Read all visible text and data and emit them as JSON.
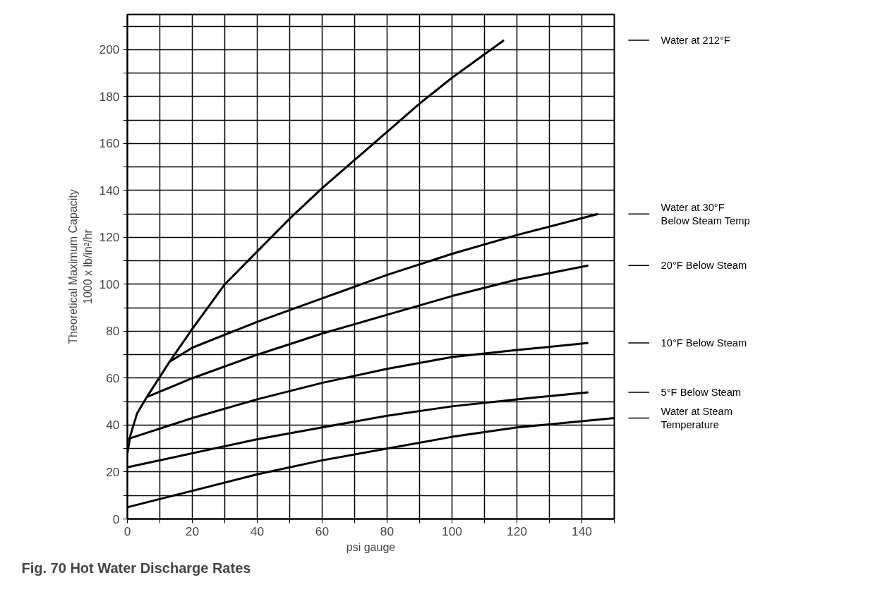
{
  "chart_data": {
    "type": "line",
    "title": "Fig. 70 Hot Water Discharge Rates",
    "xlabel": "psi gauge",
    "ylabel": "Theoretical Maximum Capacity\n1000 x lb/in²/hr",
    "xlim": [
      0,
      150
    ],
    "ylim": [
      0,
      215
    ],
    "xticks": [
      0,
      {
        "value": 10,
        "label": null
      },
      20,
      {
        "value": 30,
        "label": null
      },
      40,
      {
        "value": 50,
        "label": null
      },
      60,
      {
        "value": 70,
        "label": null
      },
      80,
      {
        "value": 90,
        "label": null
      },
      100,
      {
        "value": 110,
        "label": null
      },
      120,
      {
        "value": 130,
        "label": null
      },
      140,
      {
        "value": 150,
        "label": null
      }
    ],
    "yticks": [
      0,
      {
        "value": 10,
        "label": null
      },
      20,
      {
        "value": 30,
        "label": null
      },
      40,
      {
        "value": 50,
        "label": null
      },
      60,
      {
        "value": 70,
        "label": null
      },
      80,
      {
        "value": 90,
        "label": null
      },
      100,
      {
        "value": 110,
        "label": null
      },
      120,
      {
        "value": 130,
        "label": null
      },
      140,
      {
        "value": 150,
        "label": null
      },
      160,
      {
        "value": 170,
        "label": null
      },
      180,
      {
        "value": 190,
        "label": null
      },
      200,
      {
        "value": 210,
        "label": null
      }
    ],
    "grid": true,
    "legend": "right",
    "marker": "none",
    "line_style": "solid",
    "series": [
      {
        "name": "Water at 212°F",
        "color": "#000000",
        "x": [
          0,
          1,
          3,
          6,
          13,
          20,
          30,
          40,
          50,
          60,
          70,
          80,
          90,
          100,
          116
        ],
        "values": [
          28,
          36,
          45,
          52,
          67,
          81,
          100,
          114,
          128,
          141,
          153,
          165,
          177,
          188,
          204
        ]
      },
      {
        "name": "Water at 30°F\nBelow Steam Temp",
        "color": "#000000",
        "x": [
          13,
          20,
          40,
          60,
          80,
          100,
          120,
          145
        ],
        "values": [
          67,
          73,
          84,
          94,
          104,
          113,
          121,
          130
        ]
      },
      {
        "name": "20°F Below Steam",
        "color": "#000000",
        "x": [
          6,
          20,
          40,
          60,
          80,
          100,
          120,
          142
        ],
        "values": [
          52,
          60,
          70,
          79,
          87,
          95,
          102,
          108
        ]
      },
      {
        "name": "10°F Below Steam",
        "color": "#000000",
        "x": [
          0,
          20,
          40,
          60,
          80,
          100,
          120,
          142
        ],
        "values": [
          34,
          43,
          51,
          58,
          64,
          69,
          72,
          75
        ]
      },
      {
        "name": "5°F Below Steam",
        "color": "#000000",
        "x": [
          0,
          20,
          40,
          60,
          80,
          100,
          120,
          142
        ],
        "values": [
          22,
          28,
          34,
          39,
          44,
          48,
          51,
          54
        ]
      },
      {
        "name": "Water at Steam\nTemperature",
        "color": "#000000",
        "x": [
          0,
          20,
          40,
          60,
          80,
          100,
          120,
          150
        ],
        "values": [
          5,
          12,
          19,
          25,
          30,
          35,
          39,
          43
        ]
      }
    ]
  }
}
